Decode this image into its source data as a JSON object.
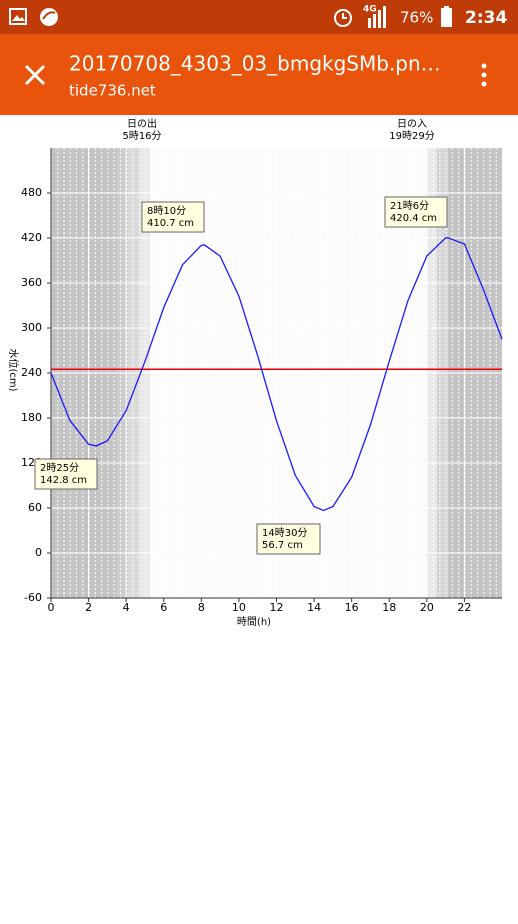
{
  "status_bar": {
    "battery": "76%",
    "network": "4G",
    "time": "2:34"
  },
  "app_bar": {
    "title": "20170708_4303_03_bmgkgSMb.pn…",
    "subtitle": "tide736.net"
  },
  "chart_data": {
    "type": "line",
    "x_label": "時間(h)",
    "y_label": "水位(cm)",
    "sunrise": {
      "label": "日の出",
      "time": "5時16分"
    },
    "sunset": {
      "label": "日の入",
      "time": "19時29分"
    },
    "x": [
      0,
      1,
      2,
      2.417,
      3,
      4,
      5,
      6,
      7,
      8,
      8.167,
      9,
      10,
      11,
      12,
      13,
      14,
      14.5,
      15,
      16,
      17,
      18,
      19,
      20,
      21,
      21.1,
      22,
      23,
      24
    ],
    "series": [
      {
        "name": "水位",
        "color": "#1a1aff",
        "values": [
          240,
          177,
          145,
          142.8,
          149.5,
          189.9,
          255.4,
          327.3,
          384.4,
          410.2,
          410.7,
          395.8,
          342.4,
          262.9,
          176.2,
          103.5,
          62.0,
          56.7,
          61.8,
          101.1,
          171.0,
          255.8,
          336.9,
          396.0,
          420.2,
          420.4,
          412,
          352,
          285
        ]
      }
    ],
    "reference_line": {
      "value": 245,
      "color": "#e60000"
    },
    "annotations": [
      {
        "time": "2時25分",
        "level": "142.8 cm"
      },
      {
        "time": "8時10分",
        "level": "410.7 cm"
      },
      {
        "time": "14時30分",
        "level": "56.7 cm"
      },
      {
        "time": "21時6分",
        "level": "420.4 cm"
      }
    ],
    "xlim": [
      0,
      24
    ],
    "xticks": [
      0,
      2,
      4,
      6,
      8,
      10,
      12,
      14,
      16,
      18,
      20,
      22
    ],
    "ylim": [
      -60,
      540
    ],
    "yticks": [
      -60,
      0,
      60,
      120,
      180,
      240,
      300,
      360,
      420,
      480
    ],
    "grid": true
  }
}
